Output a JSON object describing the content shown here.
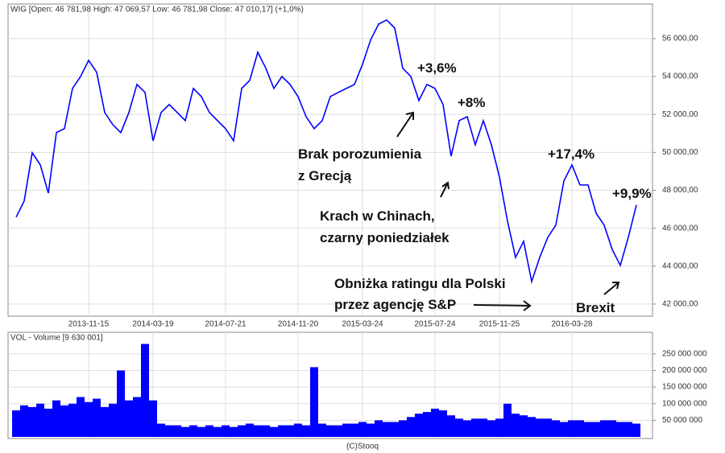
{
  "chart_data": [
    {
      "type": "line",
      "title": "WIG [Open: 46 781,98 High: 47 069,57 Low: 46 781,98 Close: 47 010,17] (+1,0%)",
      "color": "#0000ff",
      "grid": true,
      "categories": [
        null,
        null,
        null,
        null,
        null,
        null,
        null,
        null,
        null,
        "2013-11-15",
        null,
        null,
        null,
        null,
        null,
        null,
        null,
        "2014-03-19",
        null,
        null,
        null,
        null,
        null,
        null,
        null,
        null,
        "2014-07-21",
        null,
        null,
        null,
        null,
        null,
        null,
        null,
        null,
        "2014-11-20",
        null,
        null,
        null,
        null,
        null,
        null,
        null,
        "2015-03-24",
        null,
        null,
        null,
        null,
        null,
        null,
        null,
        null,
        "2015-07-24",
        null,
        null,
        null,
        null,
        null,
        null,
        null,
        "2015-11-25",
        null,
        null,
        null,
        null,
        null,
        null,
        null,
        null,
        "2016-03-28",
        null,
        null,
        null,
        null,
        null,
        null,
        null,
        null
      ],
      "values": [
        46580,
        47430,
        49980,
        49340,
        47850,
        51040,
        51250,
        53370,
        54000,
        54850,
        54220,
        52100,
        51460,
        51040,
        52100,
        53580,
        53160,
        50610,
        52100,
        52520,
        52100,
        51670,
        53370,
        52940,
        52100,
        51670,
        51250,
        50610,
        53370,
        53790,
        55280,
        54430,
        53370,
        54000,
        53580,
        52940,
        51880,
        51250,
        51670,
        52940,
        53160,
        53370,
        53580,
        54640,
        55920,
        56760,
        56980,
        56550,
        54430,
        54000,
        52730,
        53580,
        53370,
        52520,
        49800,
        51670,
        51880,
        50400,
        51670,
        50400,
        48700,
        46370,
        44460,
        45310,
        43190,
        44460,
        45520,
        46160,
        48490,
        49340,
        48280,
        48280,
        46790,
        46160,
        44880,
        44040,
        45520,
        47220
      ],
      "ylim": [
        41360,
        57820
      ],
      "yticks": [
        {
          "value": 42000,
          "label": "42 000,00"
        },
        {
          "value": 44000,
          "label": "44 000,00"
        },
        {
          "value": 46000,
          "label": "46 000,00"
        },
        {
          "value": 48000,
          "label": "48 000,00"
        },
        {
          "value": 50000,
          "label": "50 000,00"
        },
        {
          "value": 52000,
          "label": "52 000,00"
        },
        {
          "value": 54000,
          "label": "54 000,00"
        },
        {
          "value": 56000,
          "label": "56 000,00"
        }
      ],
      "annotations": [
        [
          "+3,6%"
        ],
        [
          "+8%"
        ],
        [
          "+17,4%"
        ],
        [
          "+9,9%"
        ],
        [
          "Brak porozumienia",
          "z Grecją"
        ],
        [
          "Krach w Chinach,",
          "czarny poniedziałek"
        ],
        [
          "Obniżka ratingu dla Polski",
          "przez agencję S&P"
        ],
        [
          "Brexit"
        ]
      ]
    },
    {
      "type": "bar",
      "title": "VOL - Volume [9 630 001]",
      "color": "#0000ff",
      "grid": true,
      "values": [
        80000000,
        95000000,
        90000000,
        100000000,
        85000000,
        110000000,
        95000000,
        100000000,
        120000000,
        105000000,
        115000000,
        90000000,
        100000000,
        200000000,
        110000000,
        120000000,
        280000000,
        110000000,
        40000000,
        35000000,
        35000000,
        30000000,
        35000000,
        30000000,
        35000000,
        30000000,
        35000000,
        30000000,
        35000000,
        40000000,
        35000000,
        35000000,
        30000000,
        35000000,
        35000000,
        40000000,
        35000000,
        210000000,
        40000000,
        35000000,
        35000000,
        40000000,
        40000000,
        45000000,
        40000000,
        50000000,
        45000000,
        45000000,
        50000000,
        60000000,
        70000000,
        75000000,
        85000000,
        80000000,
        65000000,
        55000000,
        50000000,
        55000000,
        55000000,
        50000000,
        55000000,
        100000000,
        70000000,
        65000000,
        60000000,
        55000000,
        55000000,
        50000000,
        45000000,
        50000000,
        50000000,
        45000000,
        45000000,
        50000000,
        50000000,
        45000000,
        45000000,
        40000000
      ],
      "ylim": [
        0,
        315000000
      ],
      "yticks": [
        {
          "value": 50000000,
          "label": "50 000 000"
        },
        {
          "value": 100000000,
          "label": "100 000 000"
        },
        {
          "value": 150000000,
          "label": "150 000 000"
        },
        {
          "value": 200000000,
          "label": "200 000 000"
        },
        {
          "value": 250000000,
          "label": "250 000 000"
        }
      ]
    }
  ],
  "footer": "(C)Stooq"
}
